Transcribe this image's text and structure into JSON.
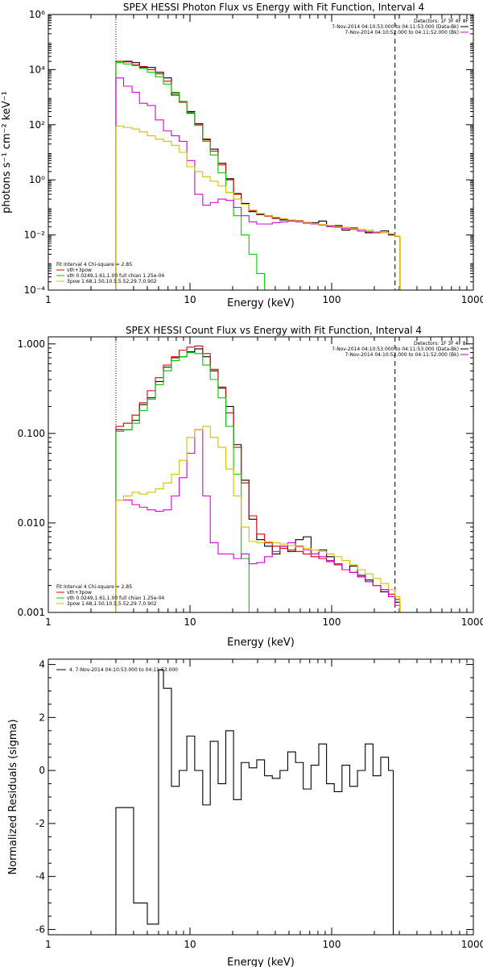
{
  "chart_data": [
    {
      "type": "line",
      "title": "SPEX HESSI Photon Flux vs Energy with Fit Function, Interval 4",
      "xlabel": "Energy (keV)",
      "ylabel": "photons s⁻¹ cm⁻² keV⁻¹",
      "xscale": "log",
      "yscale": "log",
      "xlim": [
        1,
        1000
      ],
      "ylim": [
        0.0001,
        1000000
      ],
      "xticks": [
        1,
        10,
        100,
        1000
      ],
      "xtick_labels": [
        "1",
        "10",
        "100",
        "1000"
      ],
      "yticks": [
        0.0001,
        0.01,
        1,
        100,
        10000,
        1000000
      ],
      "ytick_labels": [
        "10⁻⁴",
        "10⁻²",
        "10⁰",
        "10²",
        "10⁴",
        "10⁶"
      ],
      "vlines": [
        {
          "x": 3.0,
          "style": "dotted"
        },
        {
          "x": 280,
          "style": "dashed"
        }
      ],
      "legend_top": {
        "position": "top-right",
        "header": "Detectors: 1F 3F 4F 8F",
        "entries": [
          {
            "text": "7-Nov-2014 04:10:53.000 to 04:11:53.000 (Data-Bk)",
            "color": "#000000"
          },
          {
            "text": "7-Nov-2014 04:10:52.000 to 04:11:52.000 (Bk)",
            "color": "#dd00dd"
          }
        ]
      },
      "legend_bottom": {
        "position": "bottom-left",
        "header": "Fit Interval  4   Chi-square = 2.85",
        "entries": [
          {
            "text": "vth+3pow",
            "color": "#dd0000"
          },
          {
            "text": "vth 0.0249,1.61,1.00  full chian 1.25e-04",
            "color": "#00cc00"
          },
          {
            "text": "3pow 1.68,1.50,10.5,5.52,29.7,0.902",
            "color": "#ddbb00"
          }
        ]
      },
      "series": [
        {
          "color": "#000000",
          "x": [
            3.0,
            3.4,
            3.9,
            4.4,
            5.0,
            5.7,
            6.5,
            7.4,
            8.4,
            9.5,
            10.8,
            12.3,
            13.9,
            15.8,
            17.9,
            20.3,
            23.0,
            26.1,
            29.6,
            33.6,
            38.1,
            43.2,
            49.0,
            55.6,
            63.0,
            71.5,
            81.1,
            92.0,
            104.3,
            118.3,
            134.2,
            152.2,
            172.6,
            195.8,
            222.1,
            251.9,
            280.0
          ],
          "y": [
            20000,
            20000,
            18000,
            12000,
            12000,
            8000,
            5000,
            1200,
            700,
            300,
            110,
            30,
            13,
            4,
            1.1,
            0.32,
            0.14,
            0.07,
            0.055,
            0.05,
            0.04,
            0.035,
            0.035,
            0.033,
            0.027,
            0.028,
            0.032,
            0.021,
            0.022,
            0.015,
            0.018,
            0.014,
            0.012,
            0.012,
            0.014,
            0.01,
            0.009
          ]
        },
        {
          "color": "#dd0000",
          "x": [
            3.0,
            3.4,
            3.9,
            4.4,
            5.0,
            5.7,
            6.5,
            7.4,
            8.4,
            9.5,
            10.8,
            12.3,
            13.9,
            15.8,
            17.9,
            20.3,
            23.0,
            26.1,
            29.6,
            33.6,
            38.1,
            43.2,
            49.0,
            55.6,
            63.0,
            71.5,
            81.1,
            92.0,
            104.3,
            118.3,
            134.2,
            152.2,
            172.6,
            195.8,
            222.1,
            251.9,
            280.0
          ],
          "y": [
            20000,
            19000,
            15000,
            13000,
            10000,
            7000,
            3800,
            1400,
            650,
            260,
            100,
            28,
            11,
            3.5,
            1.0,
            0.3,
            0.13,
            0.075,
            0.058,
            0.048,
            0.042,
            0.037,
            0.034,
            0.031,
            0.028,
            0.026,
            0.024,
            0.022,
            0.02,
            0.019,
            0.017,
            0.016,
            0.015,
            0.013,
            0.012,
            0.011,
            0.009
          ]
        },
        {
          "color": "#00cc00",
          "x": [
            3.0,
            3.4,
            3.9,
            4.4,
            5.0,
            5.7,
            6.5,
            7.4,
            8.4,
            9.5,
            10.8,
            12.3,
            13.9,
            15.8,
            17.9,
            20.3,
            23.0,
            26.1,
            29.6,
            33.6
          ],
          "y": [
            18000,
            16000,
            14000,
            11000,
            8000,
            5500,
            3000,
            1500,
            700,
            280,
            95,
            25,
            8,
            1.8,
            0.35,
            0.05,
            0.01,
            0.002,
            0.0004,
            0.0001
          ]
        },
        {
          "color": "#dd00dd",
          "x": [
            3.0,
            3.4,
            3.9,
            4.4,
            5.0,
            5.7,
            6.5,
            7.4,
            8.4,
            9.5,
            10.8,
            12.3,
            13.9,
            15.8,
            17.9,
            20.3,
            23.0,
            26.1,
            29.6,
            33.6,
            38.1,
            43.2,
            49.0,
            55.6,
            63.0,
            71.5,
            81.1,
            92.0,
            104.3,
            118.3,
            134.2,
            152.2,
            172.6,
            195.8,
            222.1,
            251.9,
            280.0
          ],
          "y": [
            5000,
            2500,
            1500,
            600,
            500,
            150,
            60,
            40,
            25,
            5,
            0.3,
            0.12,
            0.15,
            0.2,
            0.18,
            0.1,
            0.05,
            0.03,
            0.025,
            0.025,
            0.028,
            0.03,
            0.032,
            0.03,
            0.027,
            0.025,
            0.023,
            0.02,
            0.019,
            0.017,
            0.016,
            0.014,
            0.013,
            0.012,
            0.012,
            0.011,
            0.009
          ]
        },
        {
          "color": "#ddbb00",
          "x": [
            3.0,
            3.4,
            3.9,
            4.4,
            5.0,
            5.7,
            6.5,
            7.4,
            8.4,
            9.5,
            10.8,
            12.3,
            13.9,
            15.8,
            17.9,
            20.3,
            23.0,
            26.1,
            29.6,
            33.6,
            38.1,
            43.2,
            49.0,
            55.6,
            63.0,
            71.5,
            81.1,
            92.0,
            104.3,
            118.3,
            134.2,
            152.2,
            172.6,
            195.8,
            222.1,
            251.9,
            280.0
          ],
          "y": [
            90,
            80,
            70,
            55,
            40,
            30,
            25,
            18,
            10,
            3,
            2,
            1.3,
            0.9,
            0.6,
            0.35,
            0.2,
            0.13,
            0.08,
            0.06,
            0.05,
            0.044,
            0.039,
            0.035,
            0.032,
            0.029,
            0.026,
            0.024,
            0.022,
            0.02,
            0.019,
            0.017,
            0.016,
            0.015,
            0.013,
            0.012,
            0.011,
            0.009
          ]
        }
      ]
    },
    {
      "type": "line",
      "title": "SPEX HESSI Count Flux vs Energy with Fit Function, Interval 4",
      "xlabel": "Energy (keV)",
      "ylabel": "",
      "xscale": "log",
      "yscale": "log",
      "xlim": [
        1,
        1000
      ],
      "ylim": [
        0.001,
        1.2
      ],
      "xticks": [
        1,
        10,
        100,
        1000
      ],
      "xtick_labels": [
        "1",
        "10",
        "100",
        "1000"
      ],
      "yticks": [
        0.001,
        0.01,
        0.1,
        1
      ],
      "ytick_labels": [
        "0.001",
        "0.010",
        "0.100",
        "1.000"
      ],
      "vlines": [
        {
          "x": 3.0,
          "style": "dotted"
        },
        {
          "x": 280,
          "style": "dashed"
        }
      ],
      "legend_top": {
        "position": "top-right",
        "header": "Detectors: 1F 3F 4F 8F",
        "entries": [
          {
            "text": "7-Nov-2014 04:10:53.000 to 04:11:53.000 (Data-Bk)",
            "color": "#000000"
          },
          {
            "text": "7-Nov-2014 04:10:52.000 to 04:11:52.000 (Bk)",
            "color": "#dd00dd"
          }
        ]
      },
      "legend_bottom": {
        "position": "bottom-left",
        "header": "Fit Interval  4   Chi-square = 2.85",
        "entries": [
          {
            "text": "vth+3pow",
            "color": "#dd0000"
          },
          {
            "text": "vth 0.0249,1.61,1.00  full chian 1.25e-04",
            "color": "#00cc00"
          },
          {
            "text": "3pow 1.68,1.50,10.5,5.52,29.7,0.902",
            "color": "#ddbb00"
          }
        ]
      },
      "series": [
        {
          "color": "#000000",
          "x": [
            3.0,
            3.4,
            3.9,
            4.4,
            5.0,
            5.7,
            6.5,
            7.4,
            8.4,
            9.5,
            10.8,
            12.3,
            13.9,
            15.8,
            17.9,
            20.3,
            23.0,
            26.1,
            29.6,
            33.6,
            38.1,
            43.2,
            49.0,
            55.6,
            63.0,
            71.5,
            81.1,
            92.0,
            104.3,
            118.3,
            134.2,
            152.2,
            172.6,
            195.8,
            222.1,
            251.9,
            280.0
          ],
          "y": [
            0.11,
            0.11,
            0.14,
            0.21,
            0.25,
            0.38,
            0.55,
            0.7,
            0.72,
            0.82,
            0.88,
            0.72,
            0.5,
            0.32,
            0.2,
            0.075,
            0.03,
            0.011,
            0.0065,
            0.0055,
            0.0045,
            0.0055,
            0.0048,
            0.0065,
            0.007,
            0.0045,
            0.005,
            0.0042,
            0.0035,
            0.003,
            0.0033,
            0.0026,
            0.0023,
            0.002,
            0.0017,
            0.0015,
            0.0013
          ]
        },
        {
          "color": "#dd0000",
          "x": [
            3.0,
            3.4,
            3.9,
            4.4,
            5.0,
            5.7,
            6.5,
            7.4,
            8.4,
            9.5,
            10.8,
            12.3,
            13.9,
            15.8,
            17.9,
            20.3,
            23.0,
            26.1,
            29.6,
            33.6,
            38.1,
            43.2,
            49.0,
            55.6,
            63.0,
            71.5,
            81.1,
            92.0,
            104.3,
            118.3,
            134.2,
            152.2,
            172.6,
            195.8,
            222.1,
            251.9,
            280.0
          ],
          "y": [
            0.12,
            0.13,
            0.16,
            0.22,
            0.3,
            0.42,
            0.58,
            0.72,
            0.85,
            0.92,
            0.95,
            0.78,
            0.52,
            0.33,
            0.17,
            0.07,
            0.028,
            0.012,
            0.0075,
            0.006,
            0.0055,
            0.0052,
            0.005,
            0.0048,
            0.0045,
            0.0042,
            0.004,
            0.0037,
            0.0034,
            0.003,
            0.0028,
            0.0025,
            0.0022,
            0.002,
            0.0018,
            0.0016,
            0.0014
          ]
        },
        {
          "color": "#00cc00",
          "x": [
            3.0,
            3.4,
            3.9,
            4.4,
            5.0,
            5.7,
            6.5,
            7.4,
            8.4,
            9.5,
            10.8,
            12.3,
            13.9,
            15.8,
            17.9,
            20.3,
            23.0,
            26.1
          ],
          "y": [
            0.105,
            0.11,
            0.13,
            0.18,
            0.24,
            0.35,
            0.5,
            0.65,
            0.72,
            0.8,
            0.78,
            0.58,
            0.4,
            0.25,
            0.12,
            0.035,
            0.004,
            0.0009
          ]
        },
        {
          "color": "#dd00dd",
          "x": [
            3.0,
            3.4,
            3.9,
            4.4,
            5.0,
            5.7,
            6.5,
            7.4,
            8.4,
            9.5,
            10.8,
            12.3,
            13.9,
            15.8,
            17.9,
            20.3,
            23.0,
            26.1,
            29.6,
            33.6,
            38.1,
            43.2,
            49.0,
            55.6,
            63.0,
            71.5,
            81.1,
            92.0,
            104.3,
            118.3,
            134.2,
            152.2,
            172.6,
            195.8,
            222.1,
            251.9,
            280.0
          ],
          "y": [
            0.018,
            0.018,
            0.016,
            0.015,
            0.014,
            0.0135,
            0.014,
            0.02,
            0.032,
            0.06,
            0.11,
            0.02,
            0.006,
            0.0045,
            0.0045,
            0.004,
            0.0045,
            0.0035,
            0.0036,
            0.0042,
            0.0048,
            0.0055,
            0.006,
            0.0055,
            0.005,
            0.0045,
            0.0042,
            0.0038,
            0.0035,
            0.003,
            0.0028,
            0.0025,
            0.0022,
            0.002,
            0.0018,
            0.0015,
            0.0012
          ]
        },
        {
          "color": "#ddbb00",
          "x": [
            3.0,
            3.4,
            3.9,
            4.4,
            5.0,
            5.7,
            6.5,
            7.4,
            8.4,
            9.5,
            10.8,
            12.3,
            13.9,
            15.8,
            17.9,
            20.3,
            23.0,
            26.1,
            29.6,
            33.6,
            38.1,
            43.2,
            49.0,
            55.6,
            63.0,
            71.5,
            81.1,
            92.0,
            104.3,
            118.3,
            134.2,
            152.2,
            172.6,
            195.8,
            222.1,
            251.9,
            280.0
          ],
          "y": [
            0.018,
            0.02,
            0.022,
            0.021,
            0.022,
            0.024,
            0.028,
            0.035,
            0.05,
            0.09,
            0.11,
            0.12,
            0.09,
            0.07,
            0.04,
            0.02,
            0.009,
            0.0062,
            0.006,
            0.0062,
            0.006,
            0.0058,
            0.0056,
            0.0054,
            0.0052,
            0.005,
            0.0048,
            0.0045,
            0.0042,
            0.0038,
            0.0034,
            0.003,
            0.0027,
            0.0024,
            0.0021,
            0.0018,
            0.0015
          ]
        }
      ]
    },
    {
      "type": "line",
      "title": "",
      "xlabel": "Energy (keV)",
      "ylabel": "Normalized Residuals (sigma)",
      "xscale": "log",
      "yscale": "linear",
      "xlim": [
        1,
        1000
      ],
      "ylim": [
        -6.2,
        4.2
      ],
      "xticks": [
        1,
        10,
        100,
        1000
      ],
      "xtick_labels": [
        "1",
        "10",
        "100",
        "1000"
      ],
      "yticks": [
        -6,
        -4,
        -2,
        0,
        2,
        4
      ],
      "ytick_labels": [
        "-6",
        "-4",
        "-2",
        "0",
        "2",
        "4"
      ],
      "legend_top": {
        "position": "top-left",
        "header": "",
        "entries": [
          {
            "text": "4.  7-Nov-2014 04:10:53.000 to 04:11:53.000",
            "color": "#000000"
          }
        ]
      },
      "series": [
        {
          "color": "#000000",
          "x": [
            3.0,
            4.0,
            5.0,
            6.0,
            6.5,
            7.4,
            8.4,
            9.5,
            10.8,
            12.3,
            13.9,
            15.8,
            17.9,
            20.3,
            23.0,
            26.1,
            29.6,
            33.6,
            38.1,
            43.2,
            49.0,
            55.6,
            63.0,
            71.5,
            81.1,
            92.0,
            104.3,
            118.3,
            134.2,
            152.2,
            172.6,
            195.8,
            222.1,
            251.9
          ],
          "y": [
            -1.4,
            -5.0,
            -5.8,
            3.8,
            3.1,
            -0.6,
            0.0,
            1.3,
            0.0,
            -1.3,
            1.1,
            -0.5,
            1.5,
            -1.1,
            0.3,
            0.1,
            0.4,
            -0.2,
            -0.3,
            0.0,
            0.7,
            0.3,
            -0.7,
            0.2,
            1.0,
            -0.5,
            -0.8,
            0.2,
            -0.6,
            0.0,
            1.0,
            -0.2,
            0.5,
            0.0
          ]
        }
      ]
    }
  ]
}
